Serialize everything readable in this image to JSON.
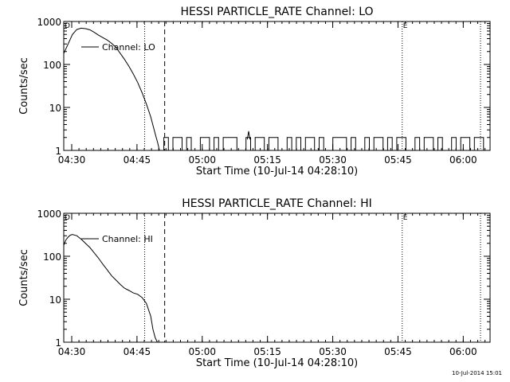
{
  "timestamp": "10-Jul-2014 15:01",
  "chart_data": [
    {
      "type": "line",
      "title": "HESSI PARTICLE_RATE Channel: LO",
      "xlabel": "Start Time (10-Jul-14 04:28:10)",
      "ylabel": "Counts/sec",
      "yscale": "log",
      "ylim": [
        1,
        1000
      ],
      "xlim_minutes": [
        0,
        98
      ],
      "x_ticks": [
        "04:30",
        "04:45",
        "05:00",
        "05:15",
        "05:30",
        "05:45",
        "06:00"
      ],
      "y_ticks": [
        "1",
        "10",
        "100",
        "1000"
      ],
      "legend": "Channel: LO",
      "legend_position": "top-left",
      "markers": [
        {
          "label": "D",
          "x": 0
        },
        {
          "label": "E",
          "x": 77.8
        }
      ],
      "vlines_dotted": [
        18.6,
        77.8,
        95.8
      ],
      "vlines_dashed": [
        23.2
      ],
      "series": [
        {
          "name": "Channel: LO",
          "x": [
            0,
            1,
            2,
            3,
            4,
            5,
            6,
            7,
            8,
            9,
            10,
            11,
            12,
            13,
            14,
            15,
            16,
            17,
            18,
            19,
            20,
            21,
            21.6,
            22
          ],
          "values": [
            180,
            300,
            500,
            650,
            700,
            680,
            640,
            560,
            480,
            420,
            370,
            310,
            250,
            180,
            130,
            90,
            60,
            38,
            22,
            12,
            6,
            2.5,
            1.5,
            1
          ]
        }
      ],
      "noise_start": 23,
      "noise_end": 97,
      "noise_level": 2,
      "spikes": [
        {
          "x": 42.5,
          "value": 2.8
        }
      ]
    },
    {
      "type": "line",
      "title": "HESSI PARTICLE_RATE Channel: HI",
      "xlabel": "Start Time (10-Jul-14 04:28:10)",
      "ylabel": "Counts/sec",
      "yscale": "log",
      "ylim": [
        1,
        1000
      ],
      "xlim_minutes": [
        0,
        98
      ],
      "x_ticks": [
        "04:30",
        "04:45",
        "05:00",
        "05:15",
        "05:30",
        "05:45",
        "06:00"
      ],
      "y_ticks": [
        "1",
        "10",
        "100",
        "1000"
      ],
      "legend": "Channel: HI",
      "legend_position": "top-left",
      "markers": [
        {
          "label": "D",
          "x": 0
        },
        {
          "label": "E",
          "x": 77.8
        }
      ],
      "vlines_dotted": [
        18.6,
        77.8,
        95.8
      ],
      "vlines_dashed": [
        23.2
      ],
      "series": [
        {
          "name": "Channel: HI",
          "x": [
            0,
            0.5,
            1,
            1.5,
            2,
            3,
            4,
            5,
            6,
            7,
            8,
            9,
            10,
            11,
            12,
            13,
            14,
            15,
            16,
            17,
            18,
            19,
            20,
            20.5,
            21,
            21.5
          ],
          "values": [
            180,
            240,
            280,
            310,
            320,
            300,
            250,
            200,
            160,
            120,
            90,
            65,
            48,
            35,
            28,
            22,
            18,
            16,
            14,
            13,
            11,
            8,
            4,
            2,
            1.3,
            1
          ]
        }
      ]
    }
  ]
}
